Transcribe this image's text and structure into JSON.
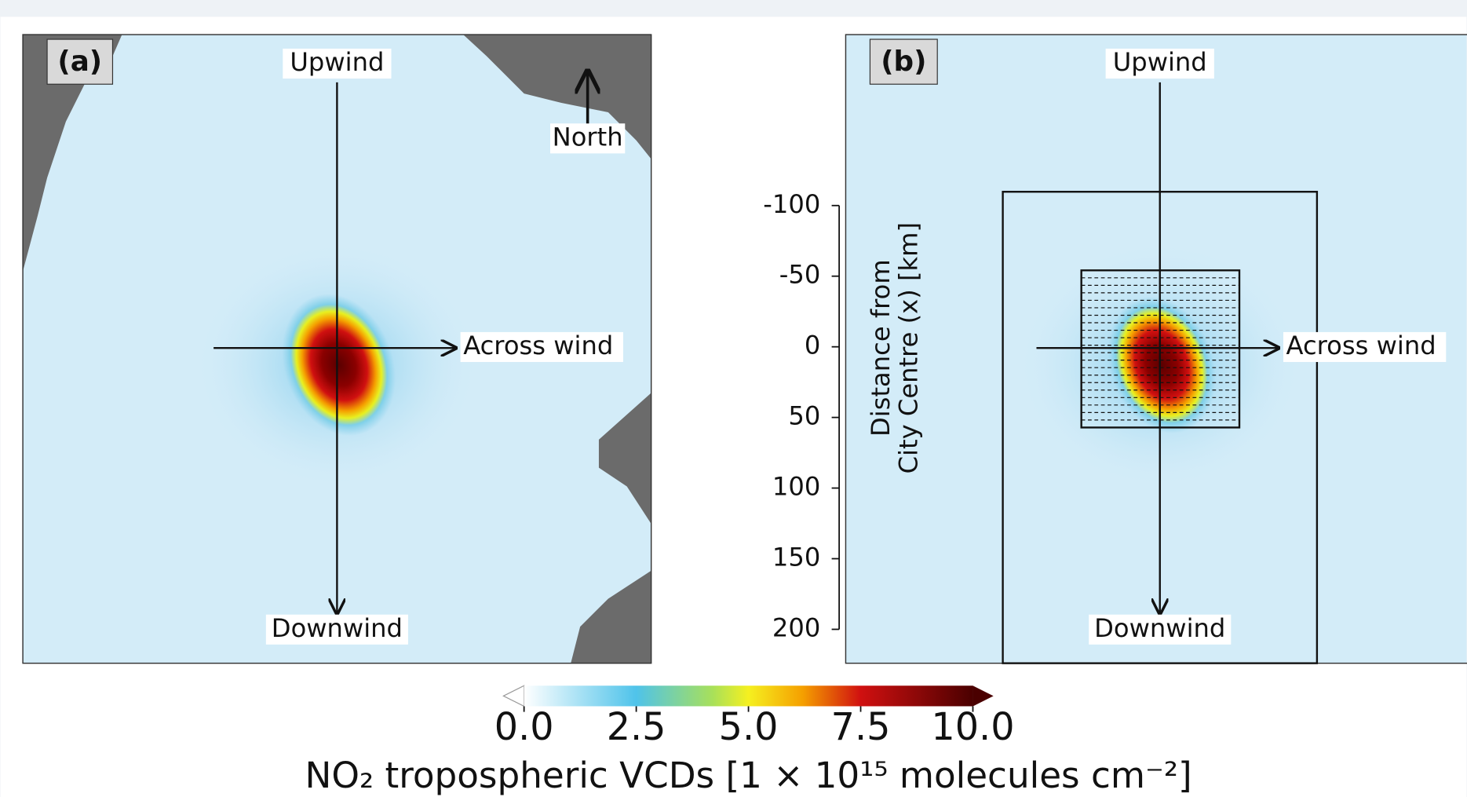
{
  "panels": [
    {
      "label": "(a)",
      "upwind": "Upwind",
      "downwind": "Downwind",
      "across": "Across wind",
      "north": "North"
    },
    {
      "label": "(b)",
      "upwind": "Upwind",
      "downwind": "Downwind",
      "across": "Across wind"
    }
  ],
  "y_axis": {
    "label_lines": [
      "Distance from",
      "City Centre (x) [km]"
    ],
    "ylim": [
      -221,
      224
    ],
    "yticks": [
      -100,
      -50,
      0,
      50,
      100,
      150,
      200
    ]
  },
  "colorbar": {
    "lim": [
      0,
      10
    ],
    "ticks": [
      {
        "value": 0,
        "label": "0.0"
      },
      {
        "value": 2.5,
        "label": "2.5"
      },
      {
        "value": 5,
        "label": "5.0"
      },
      {
        "value": 7.5,
        "label": "7.5"
      },
      {
        "value": 10,
        "label": "10.0"
      }
    ],
    "label": "NO₂ tropospheric VCDs [1 × 10¹⁵ molecules cm⁻²]"
  }
}
